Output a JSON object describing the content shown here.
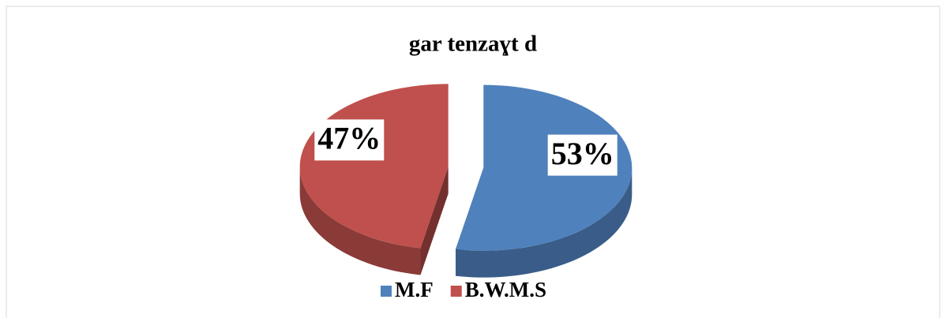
{
  "chart_data": {
    "type": "pie",
    "title": "gar tenzaɣt  d",
    "categories": [
      "M.F",
      "B.W.M.S"
    ],
    "values": [
      53,
      47
    ],
    "value_labels": [
      "53%",
      "47%"
    ],
    "colors": [
      "#4f81bd",
      "#c0504d"
    ],
    "legend": "bottom"
  }
}
